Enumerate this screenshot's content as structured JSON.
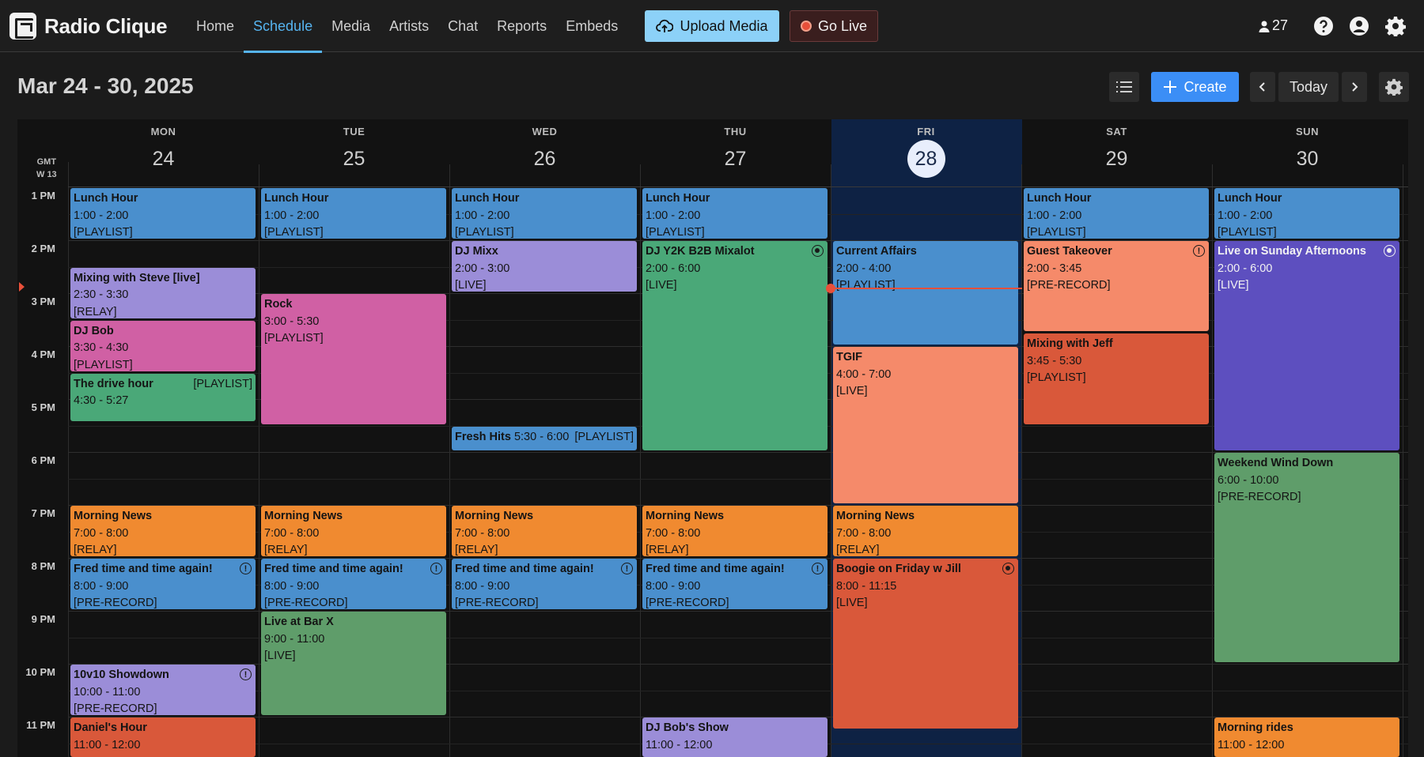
{
  "app": {
    "name": "Radio Clique"
  },
  "nav": [
    "Home",
    "Schedule",
    "Media",
    "Artists",
    "Chat",
    "Reports",
    "Embeds"
  ],
  "actions": {
    "upload": "Upload Media",
    "golive": "Go Live",
    "listeners": "27"
  },
  "toolbar": {
    "date_range": "Mar 24 - 30, 2025",
    "create": "Create",
    "today": "Today"
  },
  "timezone": {
    "gmt": "GMT",
    "week": "W 13"
  },
  "days": [
    {
      "dow": "MON",
      "num": "24"
    },
    {
      "dow": "TUE",
      "num": "25"
    },
    {
      "dow": "WED",
      "num": "26"
    },
    {
      "dow": "THU",
      "num": "27"
    },
    {
      "dow": "FRI",
      "num": "28"
    },
    {
      "dow": "SAT",
      "num": "29"
    },
    {
      "dow": "SUN",
      "num": "30"
    }
  ],
  "hours": [
    "1 PM",
    "2 PM",
    "3 PM",
    "4 PM",
    "5 PM",
    "6 PM",
    "7 PM",
    "8 PM",
    "9 PM",
    "10 PM",
    "11 PM"
  ],
  "colors": {
    "accent": "#56b4f0",
    "create": "#3b8ef6",
    "today_column": "#0e2244",
    "now_line": "#e8503a"
  },
  "events": [
    {
      "day": 0,
      "title": "Lunch Hour",
      "time": "1:00 - 2:00",
      "kind": "[PLAYLIST]",
      "color": "blue"
    },
    {
      "day": 0,
      "title": "Mixing with Steve [live]",
      "time": "2:30 - 3:30",
      "kind": "[RELAY]",
      "color": "purple"
    },
    {
      "day": 0,
      "title": "DJ Bob",
      "time": "3:30 - 4:30",
      "kind": "[PLAYLIST]",
      "color": "pink"
    },
    {
      "day": 0,
      "title": "The drive hour",
      "time": "4:30 - 5:27",
      "kind": "[PLAYLIST]",
      "color": "green"
    },
    {
      "day": 0,
      "title": "Morning News",
      "time": "7:00 - 8:00",
      "kind": "[RELAY]",
      "color": "orange"
    },
    {
      "day": 0,
      "title": "Fred time and time again!",
      "time": "8:00 - 9:00",
      "kind": "[PRE-RECORD]",
      "color": "blue",
      "icon": "warning-icon"
    },
    {
      "day": 0,
      "title": "10v10 Showdown",
      "time": "10:00 - 11:00",
      "kind": "[PRE-RECORD]",
      "color": "purple",
      "icon": "warning-icon"
    },
    {
      "day": 0,
      "title": "Daniel's Hour",
      "time": "11:00 - 12:00",
      "kind": "",
      "color": "red"
    },
    {
      "day": 1,
      "title": "Lunch Hour",
      "time": "1:00 - 2:00",
      "kind": "[PLAYLIST]",
      "color": "blue"
    },
    {
      "day": 1,
      "title": "Rock",
      "time": "3:00 - 5:30",
      "kind": "[PLAYLIST]",
      "color": "pink"
    },
    {
      "day": 1,
      "title": "Morning News",
      "time": "7:00 - 8:00",
      "kind": "[RELAY]",
      "color": "orange"
    },
    {
      "day": 1,
      "title": "Fred time and time again!",
      "time": "8:00 - 9:00",
      "kind": "[PRE-RECORD]",
      "color": "blue",
      "icon": "warning-icon"
    },
    {
      "day": 1,
      "title": "Live at Bar X",
      "time": "9:00 - 11:00",
      "kind": "[LIVE]",
      "color": "sage"
    },
    {
      "day": 2,
      "title": "Lunch Hour",
      "time": "1:00 - 2:00",
      "kind": "[PLAYLIST]",
      "color": "blue"
    },
    {
      "day": 2,
      "title": "DJ Mixx",
      "time": "2:00 - 3:00",
      "kind": "[LIVE]",
      "color": "purple"
    },
    {
      "day": 2,
      "title": "Fresh Hits",
      "time": "5:30 - 6:00",
      "kind": "[PLAYLIST]",
      "color": "blue"
    },
    {
      "day": 2,
      "title": "Morning News",
      "time": "7:00 - 8:00",
      "kind": "[RELAY]",
      "color": "orange"
    },
    {
      "day": 2,
      "title": "Fred time and time again!",
      "time": "8:00 - 9:00",
      "kind": "[PRE-RECORD]",
      "color": "blue",
      "icon": "warning-icon"
    },
    {
      "day": 3,
      "title": "Lunch Hour",
      "time": "1:00 - 2:00",
      "kind": "[PLAYLIST]",
      "color": "blue"
    },
    {
      "day": 3,
      "title": "DJ Y2K B2B Mixalot",
      "time": "2:00 - 6:00",
      "kind": "[LIVE]",
      "color": "green",
      "icon": "live-icon"
    },
    {
      "day": 3,
      "title": "Morning News",
      "time": "7:00 - 8:00",
      "kind": "[RELAY]",
      "color": "orange"
    },
    {
      "day": 3,
      "title": "Fred time and time again!",
      "time": "8:00 - 9:00",
      "kind": "[PRE-RECORD]",
      "color": "blue",
      "icon": "warning-icon"
    },
    {
      "day": 3,
      "title": "DJ Bob's Show",
      "time": "11:00 - 12:00",
      "kind": "",
      "color": "purple"
    },
    {
      "day": 4,
      "title": "Current Affairs",
      "time": "2:00 - 4:00",
      "kind": "[PLAYLIST]",
      "color": "blue"
    },
    {
      "day": 4,
      "title": "TGIF",
      "time": "4:00 - 7:00",
      "kind": "[LIVE]",
      "color": "salmon"
    },
    {
      "day": 4,
      "title": "Morning News",
      "time": "7:00 - 8:00",
      "kind": "[RELAY]",
      "color": "orange"
    },
    {
      "day": 4,
      "title": "Boogie on Friday w Jill",
      "time": "8:00 - 11:15",
      "kind": "[LIVE]",
      "color": "red",
      "icon": "live-icon"
    },
    {
      "day": 5,
      "title": "Lunch Hour",
      "time": "1:00 - 2:00",
      "kind": "[PLAYLIST]",
      "color": "blue"
    },
    {
      "day": 5,
      "title": "Guest Takeover",
      "time": "2:00 - 3:45",
      "kind": "[PRE-RECORD]",
      "color": "salmon",
      "icon": "warning-icon"
    },
    {
      "day": 5,
      "title": "Mixing with Jeff",
      "time": "3:45 - 5:30",
      "kind": "[PLAYLIST]",
      "color": "red"
    },
    {
      "day": 6,
      "title": "Lunch Hour",
      "time": "1:00 - 2:00",
      "kind": "[PLAYLIST]",
      "color": "blue"
    },
    {
      "day": 6,
      "title": "Live on Sunday Afternoons",
      "time": "2:00 - 6:00",
      "kind": "[LIVE]",
      "color": "violet",
      "icon": "live-icon"
    },
    {
      "day": 6,
      "title": "Weekend Wind Down",
      "time": "6:00 - 10:00",
      "kind": "[PRE-RECORD]",
      "color": "sage"
    },
    {
      "day": 6,
      "title": "Morning rides",
      "time": "11:00 - 12:00",
      "kind": "",
      "color": "orange"
    }
  ]
}
